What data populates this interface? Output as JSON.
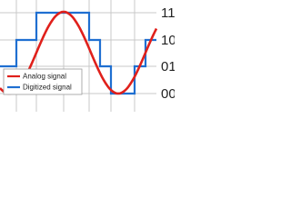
{
  "legend": {
    "items": [
      "Analog signal",
      "Digitized signal"
    ]
  },
  "levels": [
    "11",
    "10",
    "01",
    "00"
  ]
}
